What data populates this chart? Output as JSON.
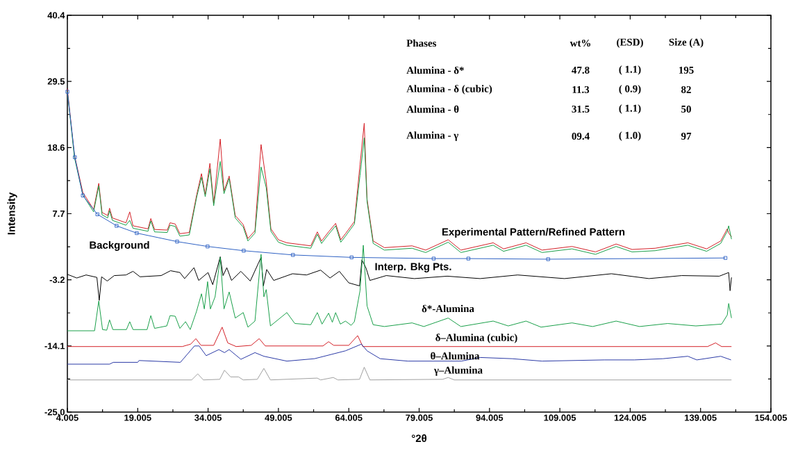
{
  "chart_data": {
    "type": "line",
    "xlabel": "°2θ",
    "ylabel": "Intensity",
    "xlim": [
      4.005,
      154.005
    ],
    "ylim": [
      -25,
      40.4
    ],
    "xticks": [
      4.005,
      19.005,
      34.005,
      49.005,
      64.005,
      79.005,
      94.005,
      109.005,
      124.005,
      139.005,
      154.005
    ],
    "yticks": [
      {
        "value": -25,
        "label": "-25.0"
      },
      -14.1,
      -3.2,
      7.7,
      18.6,
      29.5,
      40.4
    ],
    "series": [
      {
        "color": "#d42027",
        "x": [
          4.005,
          5.5,
          7.3,
          9.6,
          10.7,
          11.4,
          12.6,
          13.0,
          13.6,
          16.5,
          17.3,
          18.0,
          21.2,
          21.8,
          22.6,
          25.3,
          25.9,
          27.0,
          28.0,
          30.0,
          31.6,
          32.6,
          33.4,
          34.4,
          35.2,
          36.6,
          37.4,
          38.5,
          39.8,
          41.5,
          42.5,
          44.0,
          45.3,
          46.4,
          47.4,
          49.0,
          50.8,
          55.9,
          57.3,
          58.2,
          59.7,
          61.2,
          62.3,
          63.3,
          65.2,
          66.4,
          67.3,
          67.9,
          69.2,
          71.6,
          77.5,
          80.4,
          85.2,
          87.9,
          94.8,
          97.0,
          101.8,
          105.2,
          111.6,
          116.6,
          121.0,
          124.4,
          129.3,
          136.3,
          140.3,
          143.3,
          144.7,
          145.0,
          145.6
        ],
        "values": [
          28.3,
          17.4,
          11.2,
          8.4,
          12.7,
          7.9,
          7.4,
          8.6,
          7.0,
          6.2,
          8.0,
          5.7,
          5.2,
          6.9,
          5.1,
          5.0,
          6.2,
          6.0,
          4.4,
          4.6,
          10.9,
          14.3,
          10.9,
          16.0,
          9.4,
          20.0,
          11.4,
          13.9,
          7.4,
          5.9,
          3.6,
          4.9,
          19.1,
          13.0,
          5.2,
          3.4,
          2.9,
          2.4,
          4.7,
          3.2,
          4.7,
          6.1,
          3.4,
          4.4,
          6.4,
          15.8,
          22.6,
          10.1,
          3.2,
          2.1,
          2.4,
          1.7,
          3.4,
          1.7,
          2.9,
          1.9,
          2.9,
          1.7,
          2.3,
          1.4,
          2.7,
          1.8,
          2.0,
          2.9,
          1.9,
          3.2,
          5.2,
          4.5,
          3.9
        ]
      },
      {
        "color": "#1aa04a",
        "x": [
          4.005,
          5.5,
          7.3,
          9.6,
          10.7,
          11.4,
          12.6,
          13.0,
          13.6,
          16.5,
          17.3,
          18.0,
          21.2,
          21.8,
          22.6,
          25.3,
          25.9,
          27.0,
          28.0,
          30.0,
          31.6,
          32.6,
          33.4,
          34.4,
          35.2,
          36.6,
          37.4,
          38.5,
          39.8,
          41.5,
          42.5,
          44.0,
          45.3,
          46.4,
          47.4,
          49.0,
          50.8,
          55.9,
          57.3,
          58.2,
          59.7,
          61.2,
          62.3,
          63.3,
          65.2,
          66.4,
          67.3,
          67.9,
          69.2,
          71.6,
          77.5,
          80.4,
          85.2,
          87.9,
          94.8,
          97.0,
          101.8,
          105.2,
          111.6,
          116.6,
          121.0,
          124.4,
          129.3,
          136.3,
          140.3,
          143.3,
          144.7,
          145.0,
          145.6
        ],
        "values": [
          27.9,
          17.0,
          10.8,
          8.0,
          12.3,
          7.5,
          7.0,
          8.2,
          6.6,
          5.8,
          6.6,
          5.3,
          4.8,
          6.5,
          4.7,
          4.6,
          5.8,
          5.6,
          4.0,
          4.2,
          10.5,
          13.7,
          10.5,
          15.1,
          9.0,
          16.3,
          11.0,
          13.5,
          7.0,
          5.5,
          3.2,
          4.5,
          15.4,
          12.0,
          4.8,
          3.0,
          2.5,
          2.0,
          4.3,
          2.8,
          4.3,
          5.7,
          3.0,
          4.0,
          6.0,
          14.0,
          20.2,
          9.7,
          2.8,
          1.7,
          2.0,
          1.3,
          3.0,
          1.3,
          2.5,
          1.5,
          2.5,
          1.3,
          1.9,
          1.0,
          2.3,
          1.4,
          1.6,
          2.5,
          1.5,
          2.8,
          4.8,
          5.7,
          3.5
        ]
      },
      {
        "color": "#2f62c4",
        "x": [
          4.005,
          5.6,
          7.3,
          10.4,
          14.5,
          18.8,
          27.4,
          33.9,
          41.6,
          52.1,
          64.6,
          82.1,
          89.5,
          106.5,
          144.3
        ],
        "values": [
          27.8,
          17.0,
          10.7,
          7.6,
          5.7,
          4.5,
          3.1,
          2.3,
          1.6,
          0.9,
          0.5,
          0.3,
          0.3,
          0.2,
          0.4
        ]
      },
      {
        "type": "scatter",
        "marker": "square",
        "color": "#2f62c4",
        "x": [
          4.005,
          5.6,
          7.3,
          10.4,
          14.5,
          18.8,
          27.4,
          33.9,
          41.6,
          52.1,
          64.6,
          82.1,
          89.5,
          106.5,
          144.3
        ],
        "values": [
          27.8,
          17.0,
          10.7,
          7.6,
          5.7,
          4.5,
          3.1,
          2.3,
          1.6,
          0.9,
          0.5,
          0.3,
          0.3,
          0.2,
          0.4
        ]
      },
      {
        "color": "#000000",
        "x": [
          4.005,
          6,
          8,
          10.3,
          10.8,
          11.3,
          12.5,
          14,
          16.5,
          18,
          19.5,
          24,
          26,
          28,
          29,
          31,
          32,
          34,
          35,
          36.6,
          37.2,
          38,
          39,
          41,
          43,
          45.3,
          45.8,
          46.5,
          48,
          52,
          55,
          58,
          60,
          62,
          64,
          66.3,
          66.8,
          67.7,
          68.5,
          72,
          78,
          85,
          92,
          100,
          110,
          120,
          128,
          135,
          143,
          145,
          145.3,
          145.6
        ],
        "values": [
          -2.3,
          -2.9,
          -2.4,
          -2.8,
          -6.6,
          -2.7,
          -3.4,
          -2.5,
          -2.4,
          -1.8,
          -2.7,
          -2.5,
          -1.7,
          -2.0,
          -3.0,
          -1.2,
          -3.3,
          -2.0,
          -4.0,
          0.6,
          -2.5,
          -1.2,
          -3.3,
          -1.8,
          -3.4,
          0.5,
          -4.2,
          -1.5,
          -3.3,
          -2.2,
          -2.4,
          -1.6,
          -2.9,
          -1.8,
          -3.7,
          -4.2,
          0.1,
          -1.3,
          -3.3,
          -2.5,
          -3.0,
          -2.6,
          -3.0,
          -2.4,
          -3.0,
          -2.2,
          -3.0,
          -2.5,
          -2.6,
          -2.0,
          -5.0,
          -2.8
        ]
      },
      {
        "color": "#1aa04a",
        "x": [
          4.005,
          9.8,
          10.7,
          11.5,
          12.4,
          13.0,
          13.7,
          16.6,
          17.3,
          18.0,
          21.0,
          21.8,
          22.6,
          25.2,
          25.9,
          27.0,
          28.0,
          29.2,
          30.2,
          31.5,
          32.6,
          33.2,
          33.9,
          34.5,
          35.5,
          36.6,
          37.4,
          38.5,
          39.8,
          41.5,
          42.5,
          44.0,
          45.3,
          45.9,
          46.4,
          47.3,
          50.8,
          52.5,
          55.9,
          57.3,
          58.3,
          59.7,
          60.5,
          61.2,
          62.2,
          63.3,
          64.5,
          65.2,
          66.4,
          67.1,
          67.9,
          69.2,
          71.6,
          77.5,
          80.0,
          85.2,
          87.9,
          94.8,
          98.0,
          101.8,
          105.0,
          111.6,
          116.0,
          121.0,
          126.0,
          132.0,
          138.0,
          143.5,
          144.7,
          145.0,
          145.6
        ],
        "values": [
          -11.6,
          -11.6,
          -6.7,
          -11.4,
          -11.5,
          -9.8,
          -11.4,
          -11.4,
          -10.1,
          -11.4,
          -11.4,
          -9.1,
          -11.2,
          -10.8,
          -9.1,
          -9.2,
          -11.2,
          -10.1,
          -11.4,
          -8.5,
          -5.5,
          -8.0,
          -3.5,
          -8.0,
          -6.0,
          0.5,
          -8.0,
          -5.2,
          -9.5,
          -8.6,
          -11.0,
          -10.0,
          1.0,
          -6.0,
          -4.8,
          -10.8,
          -8.6,
          -10.4,
          -10.6,
          -8.6,
          -10.5,
          -8.7,
          -10.2,
          -8.6,
          -10.5,
          -10.0,
          -10.7,
          -10.1,
          -5.0,
          2.5,
          -7.5,
          -10.6,
          -10.9,
          -10.3,
          -10.9,
          -9.5,
          -10.9,
          -10.0,
          -10.8,
          -10.0,
          -11.0,
          -10.3,
          -10.9,
          -10.0,
          -10.9,
          -10.4,
          -10.8,
          -10.5,
          -9.0,
          -7.1,
          -9.5
        ]
      },
      {
        "color": "#d42027",
        "x": [
          4.005,
          28.5,
          30.3,
          31.4,
          32.5,
          35.2,
          37.0,
          38.2,
          40.0,
          43.2,
          44.9,
          46.2,
          58.5,
          59.7,
          60.8,
          64.0,
          65.9,
          67.0,
          140.5,
          142.2,
          143.5,
          145.6
        ],
        "values": [
          -14.2,
          -14.2,
          -13.8,
          -12.9,
          -14.0,
          -14.0,
          -11.0,
          -13.6,
          -14.2,
          -14.0,
          -12.9,
          -14.1,
          -14.1,
          -13.4,
          -14.0,
          -14.0,
          -12.4,
          -14.2,
          -14.2,
          -13.6,
          -14.2,
          -14.2
        ]
      },
      {
        "color": "#2b3aa6",
        "x": [
          4.005,
          13.0,
          13.8,
          19.0,
          19.3,
          28.1,
          31.1,
          32.1,
          33.6,
          36.3,
          37.5,
          38.5,
          41.0,
          44.0,
          45.9,
          50.8,
          56.7,
          63.3,
          66.7,
          67.9,
          70.7,
          76.6,
          88.0,
          92.0,
          98.8,
          105.2,
          118.5,
          124.9,
          131.0,
          136.3,
          138.2,
          143.3,
          145.5
        ],
        "values": [
          -17.1,
          -17.1,
          -16.8,
          -16.8,
          -16.5,
          -16.8,
          -14.1,
          -14.1,
          -15.7,
          -14.7,
          -15.2,
          -14.7,
          -16.3,
          -15.2,
          -15.8,
          -16.6,
          -16.2,
          -14.9,
          -13.8,
          -14.9,
          -16.2,
          -16.6,
          -16.6,
          -16.0,
          -16.2,
          -16.6,
          -16.4,
          -16.4,
          -16.2,
          -15.8,
          -16.4,
          -15.8,
          -16.4
        ]
      },
      {
        "color": "#a0a0a0",
        "x": [
          4.005,
          30.5,
          31.8,
          33.0,
          36.5,
          37.5,
          38.8,
          40.5,
          41.5,
          44.5,
          45.9,
          47.3,
          57.3,
          58.0,
          60.7,
          61.7,
          66.3,
          67.3,
          68.5,
          84.0,
          85.2,
          86.5,
          145.6
        ],
        "values": [
          -19.7,
          -19.7,
          -18.7,
          -19.7,
          -19.6,
          -18.1,
          -19.2,
          -19.2,
          -19.7,
          -19.6,
          -17.8,
          -19.7,
          -19.4,
          -19.7,
          -19.3,
          -19.7,
          -19.6,
          -17.6,
          -19.7,
          -19.6,
          -19.3,
          -19.7,
          -19.7
        ]
      }
    ],
    "annotations": [
      "Phases",
      "wt%",
      "(ESD)",
      "Size (A)",
      "Alumina - δ*",
      "47.8",
      "( 1.1)",
      "195",
      "Alumina - δ (cubic)",
      "11.3",
      "( 0.9)",
      "82",
      "Alumina - θ",
      "31.5",
      "( 1.1)",
      "50",
      "Alumina - γ",
      "09.4",
      "( 1.0)",
      "97",
      "Background",
      "Experimental Pattern/Refined Pattern",
      "Interp. Bkg Pts.",
      "δ*-Alumina",
      "δ–Alumina (cubic)",
      "θ–Alumina",
      "γ–Alumina"
    ]
  }
}
